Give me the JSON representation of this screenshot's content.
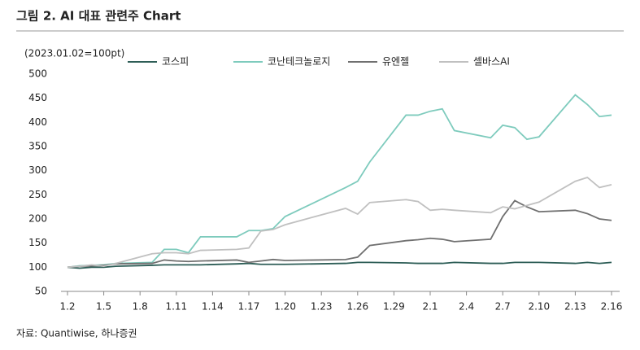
{
  "chart_data": {
    "type": "line",
    "title": "그림 2. AI 대표 관련주 Chart",
    "subtitle": "(2023.01.02=100pt)",
    "source": "자료: Quantiwise, 하나증권",
    "x": [
      0,
      1,
      2,
      3,
      4,
      7,
      8,
      9,
      10,
      11,
      14,
      15,
      16,
      17,
      18,
      23,
      24,
      25,
      28,
      29,
      30,
      31,
      32,
      35,
      36,
      37,
      38,
      39,
      42,
      43,
      44,
      45
    ],
    "xlim": [
      0,
      45
    ],
    "xticks": [
      {
        "value": 0,
        "label": "1.2"
      },
      {
        "value": 3,
        "label": "1.5"
      },
      {
        "value": 6,
        "label": "1.8"
      },
      {
        "value": 9,
        "label": "1.11"
      },
      {
        "value": 12,
        "label": "1.14"
      },
      {
        "value": 15,
        "label": "1.17"
      },
      {
        "value": 18,
        "label": "1.20"
      },
      {
        "value": 21,
        "label": "1.23"
      },
      {
        "value": 24,
        "label": "1.26"
      },
      {
        "value": 27,
        "label": "1.29"
      },
      {
        "value": 30,
        "label": "2.1"
      },
      {
        "value": 33,
        "label": "2.4"
      },
      {
        "value": 36,
        "label": "2.7"
      },
      {
        "value": 39,
        "label": "2.10"
      },
      {
        "value": 42,
        "label": "2.13"
      },
      {
        "value": 45,
        "label": "2.16"
      }
    ],
    "ylim": [
      50,
      500
    ],
    "yticks": [
      50,
      100,
      150,
      200,
      250,
      300,
      350,
      400,
      450,
      500
    ],
    "grid": false,
    "legend": "top",
    "series": [
      {
        "name": "코스피",
        "color": "#2e5e57",
        "values": [
          100,
          98,
          100,
          100,
          102,
          104,
          105,
          105,
          105,
          105,
          107,
          108,
          106,
          106,
          106,
          108,
          110,
          110,
          109,
          108,
          108,
          108,
          110,
          108,
          108,
          110,
          110,
          110,
          108,
          110,
          108,
          110
        ]
      },
      {
        "name": "코난테크놀로지",
        "color": "#7ecbbd",
        "values": [
          100,
          103,
          104,
          105,
          108,
          110,
          137,
          137,
          130,
          163,
          163,
          176,
          176,
          180,
          205,
          265,
          278,
          318,
          415,
          415,
          423,
          428,
          383,
          368,
          394,
          389,
          365,
          370,
          457,
          437,
          412,
          415
        ]
      },
      {
        "name": "유엔젤",
        "color": "#707070",
        "values": [
          100,
          102,
          103,
          104,
          107,
          108,
          115,
          113,
          112,
          113,
          115,
          110,
          113,
          116,
          114,
          116,
          121,
          145,
          155,
          157,
          160,
          158,
          153,
          158,
          205,
          238,
          225,
          215,
          218,
          211,
          200,
          197
        ]
      },
      {
        "name": "셀바스AI",
        "color": "#c0c0c0",
        "values": [
          100,
          102,
          105,
          102,
          108,
          128,
          130,
          130,
          128,
          135,
          137,
          140,
          175,
          178,
          188,
          222,
          210,
          234,
          240,
          236,
          218,
          220,
          218,
          213,
          225,
          221,
          228,
          235,
          278,
          286,
          265,
          271
        ]
      }
    ]
  }
}
